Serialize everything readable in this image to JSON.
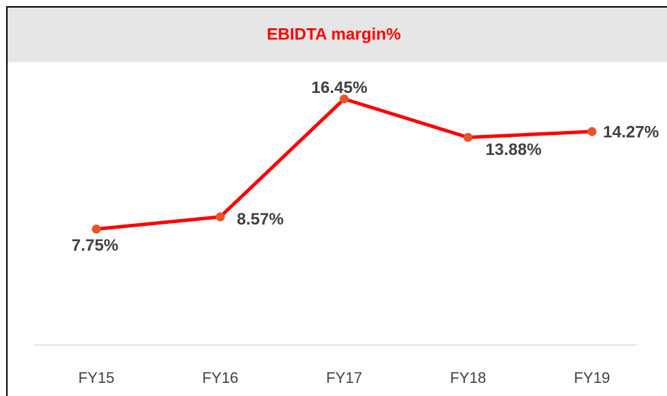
{
  "chart_data": {
    "type": "line",
    "title": "EBIDTA margin%",
    "categories": [
      "FY15",
      "FY16",
      "FY17",
      "FY18",
      "FY19"
    ],
    "series": [
      {
        "name": "EBIDTA margin%",
        "color": "#ff0000",
        "marker_color": "#e8542a",
        "values": [
          7.75,
          8.57,
          16.45,
          13.88,
          14.27
        ],
        "value_labels": [
          "7.75%",
          "8.57%",
          "16.45%",
          "13.88%",
          "14.27%"
        ]
      }
    ]
  }
}
